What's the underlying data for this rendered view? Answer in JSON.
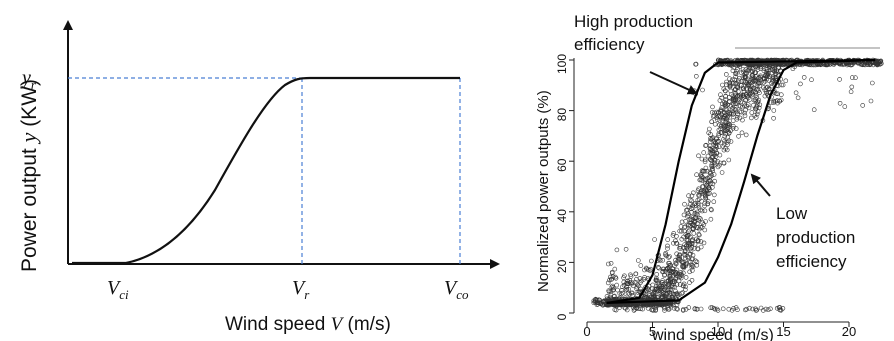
{
  "chart_data": [
    {
      "type": "line",
      "title": "",
      "xlabel": "Wind speed V (m/s)",
      "ylabel": "Power output y (KW)",
      "x_ticks": [
        "V_ci",
        "V_r",
        "V_co"
      ],
      "y_ticks": [
        "y_r"
      ],
      "grid": false,
      "reference_lines": [
        "V_r",
        "V_co",
        "y_r"
      ],
      "curve_description": "power curve: zero below V_ci, rising S-curve between V_ci and V_r, flat at rated power y_r from V_r to V_co",
      "labels": {
        "xlabel_prefix": "Wind speed ",
        "xlabel_var": "V",
        "xlabel_suffix": " (m/s)",
        "ylabel_prefix": "Power output  ",
        "ylabel_var": "y",
        "ylabel_suffix": " (KW)",
        "ytick_main": "y",
        "ytick_sub": "r",
        "xtick1_main": "V",
        "xtick1_sub": "ci",
        "xtick2_main": "V",
        "xtick2_sub": "r",
        "xtick3_main": "V",
        "xtick3_sub": "co"
      }
    },
    {
      "type": "scatter",
      "title": "",
      "xlabel": "wind speed (m/s)",
      "ylabel": "Normalized power outputs (%)",
      "xlim": [
        -1,
        23.5
      ],
      "ylim": [
        -2,
        103
      ],
      "x_ticks": [
        0,
        5,
        10,
        15,
        20
      ],
      "y_ticks": [
        0,
        20,
        40,
        60,
        80,
        100
      ],
      "grid": false,
      "series": [
        {
          "description": "observed normalized power outputs (open circles)",
          "points_estimate": [
            {
              "x": 2,
              "y": 4
            },
            {
              "x": 4,
              "y": 4
            },
            {
              "x": 5,
              "y": 10
            },
            {
              "x": 6,
              "y": 20
            },
            {
              "x": 7,
              "y": 35
            },
            {
              "x": 8,
              "y": 50
            },
            {
              "x": 9,
              "y": 65
            },
            {
              "x": 10,
              "y": 78
            },
            {
              "x": 11,
              "y": 90
            },
            {
              "x": 12,
              "y": 97
            },
            {
              "x": 14,
              "y": 100
            },
            {
              "x": 20,
              "y": 100
            }
          ]
        },
        {
          "description": "high production efficiency curve",
          "points": [
            {
              "x": 1.5,
              "y": 4
            },
            {
              "x": 4,
              "y": 6
            },
            {
              "x": 5,
              "y": 15
            },
            {
              "x": 6,
              "y": 35
            },
            {
              "x": 7,
              "y": 60
            },
            {
              "x": 8,
              "y": 82
            },
            {
              "x": 9,
              "y": 95
            },
            {
              "x": 10,
              "y": 99
            },
            {
              "x": 22,
              "y": 100
            }
          ]
        },
        {
          "description": "low production efficiency curve",
          "points": [
            {
              "x": 1.5,
              "y": 4
            },
            {
              "x": 7,
              "y": 5
            },
            {
              "x": 9,
              "y": 12
            },
            {
              "x": 10,
              "y": 22
            },
            {
              "x": 11,
              "y": 35
            },
            {
              "x": 12,
              "y": 52
            },
            {
              "x": 13,
              "y": 70
            },
            {
              "x": 14,
              "y": 86
            },
            {
              "x": 15,
              "y": 96
            },
            {
              "x": 16,
              "y": 99
            },
            {
              "x": 22,
              "y": 100
            }
          ]
        }
      ],
      "annotations": [
        "High production efficiency",
        "Low production efficiency"
      ],
      "annotation_lines": {
        "high_1": "High production",
        "high_2": "efficiency",
        "low_1": "Low",
        "low_2": "production",
        "low_3": "efficiency"
      }
    }
  ]
}
